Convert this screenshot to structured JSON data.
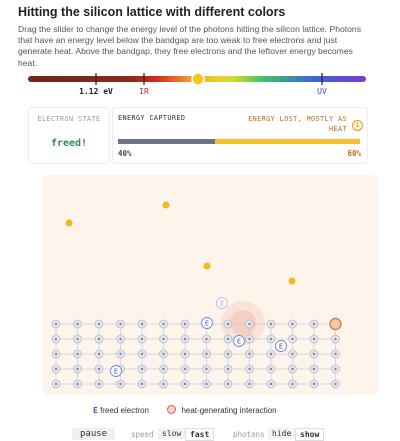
{
  "title": "Hitting the silicon lattice with different colors",
  "description": "Drag the slider to change the energy level of the photons hitting the silicon lattice. Photons that have an energy level below the bandgap are too weak to free electrons and just generate heat. Above the bandgap, they free electrons and the leftover energy becomes heat.",
  "slider": {
    "marks": [
      "1.12 eV",
      "IR",
      "UV"
    ]
  },
  "state": {
    "label": "ELECTRON STATE",
    "value": "freed!"
  },
  "energy": {
    "captured_label": "ENERGY CAPTURED",
    "lost_label": "ENERGY LOST, MOSTLY AS HEAT",
    "info": "i",
    "captured": {
      "value": 40,
      "label": "40%"
    },
    "lost": {
      "value": 60,
      "label": "60%"
    }
  },
  "lattice": {
    "electron_label": "E"
  },
  "legend": {
    "electron_icon": "E",
    "electron": "freed electron",
    "heat": "heat-generating interaction"
  },
  "controls": {
    "pause": "pause",
    "speed": "speed",
    "slow": "slow",
    "fast": "fast",
    "photons": "photons",
    "hide": "hide",
    "show": "show"
  }
}
